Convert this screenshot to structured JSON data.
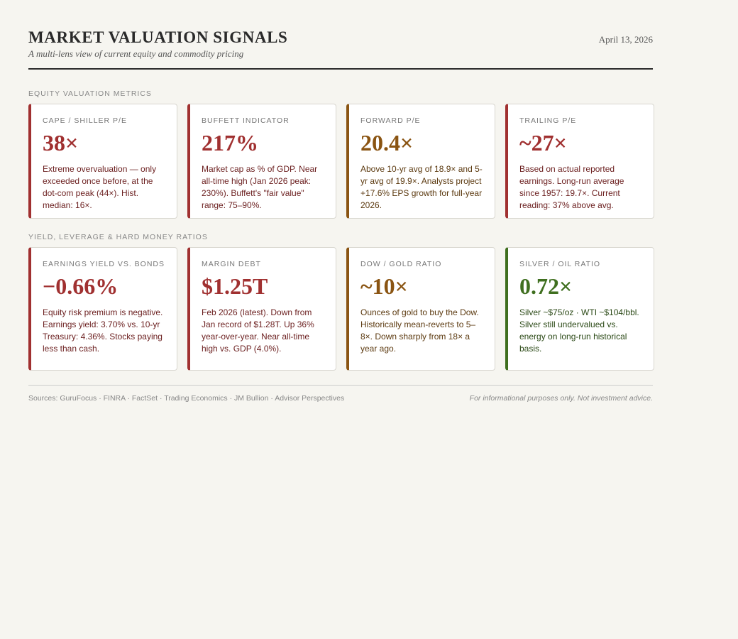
{
  "header": {
    "title": "MARKET VALUATION SIGNALS",
    "subtitle": "A multi-lens view of current equity and commodity pricing",
    "date": "April 13, 2026"
  },
  "sections": [
    {
      "label": "EQUITY VALUATION METRICS",
      "cards": [
        {
          "label": "CAPE / SHILLER P/E",
          "value": "38×",
          "desc": "Extreme overvaluation — only exceeded once before, at the dot-com peak (44×). Hist. median: 16×.",
          "tone": "red"
        },
        {
          "label": "BUFFETT INDICATOR",
          "value": "217%",
          "desc": "Market cap as % of GDP. Near all-time high (Jan 2026 peak: 230%). Buffett's \"fair value\" range: 75–90%.",
          "tone": "red"
        },
        {
          "label": "FORWARD P/E",
          "value": "20.4×",
          "desc": "Above 10-yr avg of 18.9× and 5-yr avg of 19.9×. Analysts project +17.6% EPS growth for full-year 2026.",
          "tone": "amber"
        },
        {
          "label": "TRAILING P/E",
          "value": "~27×",
          "desc": "Based on actual reported earnings. Long-run average since 1957: 19.7×. Current reading: 37% above avg.",
          "tone": "red"
        }
      ]
    },
    {
      "label": "YIELD, LEVERAGE & HARD MONEY RATIOS",
      "cards": [
        {
          "label": "EARNINGS YIELD VS. BONDS",
          "value": "−0.66%",
          "desc": "Equity risk premium is negative. Earnings yield: 3.70% vs. 10-yr Treasury: 4.36%. Stocks paying less than cash.",
          "tone": "red"
        },
        {
          "label": "MARGIN DEBT",
          "value": "$1.25T",
          "desc": "Feb 2026 (latest). Down from Jan record of $1.28T. Up 36% year-over-year. Near all-time high vs. GDP (4.0%).",
          "tone": "red"
        },
        {
          "label": "DOW / GOLD RATIO",
          "value": "~10×",
          "desc": "Ounces of gold to buy the Dow. Historically mean-reverts to 5–8×. Down sharply from 18× a year ago.",
          "tone": "amber"
        },
        {
          "label": "SILVER / OIL RATIO",
          "value": "0.72×",
          "desc": "Silver ~$75/oz · WTI ~$104/bbl. Silver still undervalued vs. energy on long-run historical basis.",
          "tone": "green"
        }
      ]
    }
  ],
  "footer": {
    "sources": "Sources: GuruFocus · FINRA · FactSet · Trading Economics · JM Bullion · Advisor Perspectives",
    "disclaimer": "For informational purposes only. Not investment advice."
  },
  "colors": {
    "red": "#a03030",
    "amber": "#8a5412",
    "green": "#3f6f1f",
    "background": "#f6f5f0"
  }
}
